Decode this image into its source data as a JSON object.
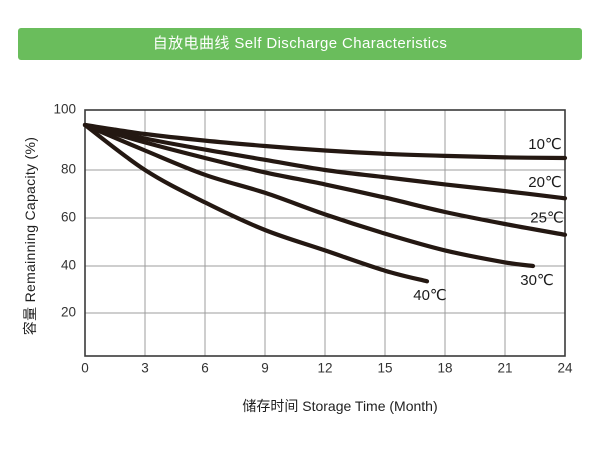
{
  "header": {
    "title": "自放电曲线 Self Discharge Characteristics"
  },
  "colors": {
    "header_bg": "#6abd5c",
    "header_text": "#ffffff",
    "curve": "#241812",
    "grid": "#9c9c9c",
    "plot_border": "#3a3a3a",
    "tick_text": "#333333",
    "series_label_text": "#1b1b1b"
  },
  "chart_data": {
    "type": "line",
    "title": "自放电曲线 Self Discharge Characteristics",
    "xlabel": "储存时间 Storage Time (Month)",
    "ylabel": "容量 Remainning Capacity (%)",
    "xlim": [
      0,
      24
    ],
    "ylim": [
      0,
      100
    ],
    "x_ticks": [
      0,
      3,
      6,
      9,
      12,
      15,
      18,
      21,
      24
    ],
    "y_ticks": [
      100,
      80,
      60,
      40,
      20
    ],
    "grid": true,
    "legend": "inline-labels",
    "series": [
      {
        "name": "10℃",
        "x": [
          0,
          3,
          6,
          9,
          12,
          15,
          18,
          21,
          24
        ],
        "values": [
          95,
          92,
          89.8,
          88,
          86.5,
          85.4,
          84.7,
          84.2,
          84
        ],
        "label_month": 23,
        "label_side": "above"
      },
      {
        "name": "20℃",
        "x": [
          0,
          3,
          6,
          9,
          12,
          15,
          18,
          21,
          24
        ],
        "values": [
          95,
          90.5,
          86.8,
          83.4,
          80,
          77,
          74,
          71.2,
          68.2
        ],
        "label_month": 23,
        "label_side": "above"
      },
      {
        "name": "25℃",
        "x": [
          0,
          3,
          6,
          9,
          12,
          15,
          18,
          21,
          24
        ],
        "values": [
          95,
          89.2,
          84,
          79,
          74,
          68.5,
          62.5,
          57.5,
          53
        ],
        "label_month": 23.1,
        "label_side": "above"
      },
      {
        "name": "30℃",
        "x": [
          0,
          3,
          6,
          9,
          12,
          15,
          18,
          21,
          22.4
        ],
        "values": [
          95,
          86.5,
          78,
          70.5,
          61.5,
          53.5,
          46.5,
          41.5,
          40
        ],
        "label_month": 22.6,
        "label_side": "below"
      },
      {
        "name": "40℃",
        "x": [
          0,
          3,
          6,
          9,
          12,
          15,
          17.1
        ],
        "values": [
          95,
          80,
          66.5,
          55,
          46.5,
          38,
          33.5
        ],
        "label_month": 17.25,
        "label_side": "below"
      }
    ]
  }
}
